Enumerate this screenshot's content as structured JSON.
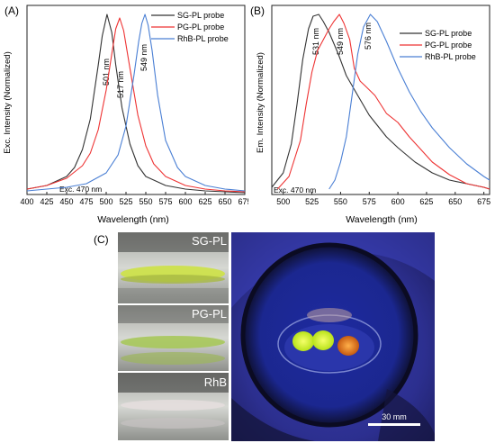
{
  "colors": {
    "sg": "#333333",
    "pg": "#ee3333",
    "rhb": "#4a7fd4"
  },
  "panel_a": {
    "label": "(A)",
    "exc_note": "Exc. 470 nm",
    "peak_labels": [
      "501 nm",
      "517 nm",
      "549 nm"
    ]
  },
  "panel_b": {
    "label": "(B)",
    "exc_note": "Exc. 470 nm",
    "peak_labels": [
      "531 nm",
      "549 nm",
      "576 nm"
    ]
  },
  "panel_c": {
    "label": "(C)",
    "vial_labels": [
      "SG-PL",
      "PG-PL",
      "RhB"
    ],
    "scale_bar": "30 mm"
  },
  "chart_data": [
    {
      "type": "line",
      "xlabel": "Wavelength (nm)",
      "ylabel": "Exc. Intensity (Normalized)",
      "xlim": [
        400,
        675
      ],
      "xticks": [
        400,
        425,
        450,
        475,
        500,
        525,
        550,
        575,
        600,
        625,
        650,
        675
      ],
      "ylim": [
        0,
        1.05
      ],
      "legend": "top-right",
      "series": [
        {
          "name": "SG-PL probe",
          "color": "#333333",
          "x": [
            400,
            425,
            450,
            460,
            470,
            480,
            490,
            495,
            501,
            507,
            512,
            520,
            530,
            540,
            550,
            575,
            600,
            625,
            650,
            675
          ],
          "y": [
            0.03,
            0.05,
            0.1,
            0.15,
            0.25,
            0.42,
            0.72,
            0.88,
            1.0,
            0.9,
            0.72,
            0.48,
            0.28,
            0.16,
            0.1,
            0.05,
            0.03,
            0.02,
            0.015,
            0.01
          ]
        },
        {
          "name": "PG-PL probe",
          "color": "#ee3333",
          "x": [
            400,
            425,
            450,
            470,
            480,
            490,
            500,
            507,
            512,
            517,
            522,
            530,
            540,
            550,
            560,
            575,
            600,
            625,
            650,
            675
          ],
          "y": [
            0.03,
            0.05,
            0.09,
            0.16,
            0.23,
            0.36,
            0.58,
            0.78,
            0.92,
            0.98,
            0.91,
            0.7,
            0.44,
            0.27,
            0.17,
            0.1,
            0.05,
            0.03,
            0.02,
            0.015
          ]
        },
        {
          "name": "RhB-PL probe",
          "color": "#4a7fd4",
          "x": [
            400,
            450,
            475,
            500,
            515,
            525,
            535,
            541,
            545,
            549,
            553,
            558,
            565,
            575,
            590,
            600,
            625,
            650,
            675
          ],
          "y": [
            0.02,
            0.04,
            0.06,
            0.12,
            0.22,
            0.38,
            0.66,
            0.85,
            0.95,
            1.0,
            0.94,
            0.8,
            0.55,
            0.3,
            0.15,
            0.1,
            0.05,
            0.03,
            0.02
          ]
        }
      ]
    },
    {
      "type": "line",
      "xlabel": "Wavelength (nm)",
      "ylabel": "Em. Intensity (Normalized)",
      "xlim": [
        490,
        680
      ],
      "xticks": [
        500,
        525,
        550,
        575,
        600,
        625,
        650,
        675
      ],
      "ylim": [
        0,
        1.05
      ],
      "legend": "top-right",
      "series": [
        {
          "name": "SG-PL probe",
          "color": "#333333",
          "x": [
            490,
            500,
            507,
            512,
            517,
            522,
            526,
            531,
            535,
            540,
            548,
            555,
            565,
            575,
            590,
            600,
            615,
            630,
            645,
            660,
            675,
            680
          ],
          "y": [
            0.04,
            0.12,
            0.28,
            0.5,
            0.75,
            0.92,
            0.99,
            1.0,
            0.96,
            0.9,
            0.78,
            0.66,
            0.55,
            0.44,
            0.32,
            0.26,
            0.18,
            0.12,
            0.08,
            0.06,
            0.04,
            0.03
          ]
        },
        {
          "name": "PG-PL probe",
          "color": "#ee3333",
          "x": [
            495,
            505,
            515,
            520,
            525,
            530,
            535,
            540,
            544,
            549,
            553,
            558,
            562,
            567,
            572,
            580,
            590,
            600,
            610,
            620,
            630,
            645,
            660,
            675,
            680
          ],
          "y": [
            0.03,
            0.1,
            0.3,
            0.5,
            0.68,
            0.8,
            0.86,
            0.92,
            0.96,
            1.0,
            0.95,
            0.86,
            0.7,
            0.63,
            0.6,
            0.55,
            0.45,
            0.4,
            0.32,
            0.25,
            0.18,
            0.11,
            0.06,
            0.04,
            0.03
          ]
        },
        {
          "name": "RhB-PL probe",
          "color": "#4a7fd4",
          "x": [
            540,
            545,
            550,
            555,
            560,
            565,
            570,
            576,
            582,
            590,
            600,
            610,
            620,
            630,
            645,
            660,
            675,
            680
          ],
          "y": [
            0.03,
            0.08,
            0.18,
            0.32,
            0.55,
            0.78,
            0.93,
            1.0,
            0.96,
            0.85,
            0.7,
            0.57,
            0.46,
            0.37,
            0.26,
            0.17,
            0.1,
            0.08
          ]
        }
      ]
    }
  ]
}
